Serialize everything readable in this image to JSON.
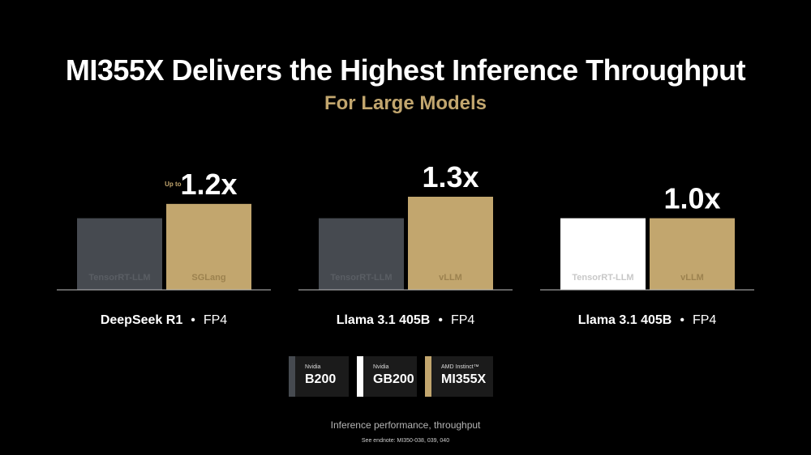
{
  "title": "MI355X Delivers the Highest Inference Throughput",
  "subtitle": "For Large Models",
  "colors": {
    "background": "#000000",
    "b200": "#464a50",
    "gb200": "#ffffff",
    "mi355x": "#c2a66e",
    "subtitle": "#c2a66e",
    "baseline": "#bfbfbf"
  },
  "legend": [
    {
      "vendor": "Nvidia",
      "model": "B200",
      "color": "#464a50"
    },
    {
      "vendor": "Nvidia",
      "model": "GB200",
      "color": "#ffffff"
    },
    {
      "vendor": "AMD Instinct™",
      "model": "MI355X",
      "color": "#c2a66e"
    }
  ],
  "chart_data": [
    {
      "type": "bar",
      "model_label": "DeepSeek R1",
      "precision": "FP4",
      "speedup_prefix": "Up to",
      "speedup_label": "1.2x",
      "categories": [
        "TensorRT-LLM",
        "SGLang"
      ],
      "values": [
        1.0,
        1.2
      ],
      "colors": [
        "#464a50",
        "#c2a66e"
      ],
      "label_colors": [
        "#5a5e64",
        "#9c824f"
      ],
      "ylim": [
        0,
        1.3
      ]
    },
    {
      "type": "bar",
      "model_label": "Llama 3.1 405B",
      "precision": "FP4",
      "speedup_prefix": "",
      "speedup_label": "1.3x",
      "categories": [
        "TensorRT-LLM",
        "vLLM"
      ],
      "values": [
        1.0,
        1.3
      ],
      "colors": [
        "#464a50",
        "#c2a66e"
      ],
      "label_colors": [
        "#5a5e64",
        "#9c824f"
      ],
      "ylim": [
        0,
        1.3
      ]
    },
    {
      "type": "bar",
      "model_label": "Llama 3.1 405B",
      "precision": "FP4",
      "speedup_prefix": "",
      "speedup_label": "1.0x",
      "categories": [
        "TensorRT-LLM",
        "vLLM"
      ],
      "values": [
        1.0,
        1.0
      ],
      "colors": [
        "#ffffff",
        "#c2a66e"
      ],
      "label_colors": [
        "#c8c8c8",
        "#9c824f"
      ],
      "ylim": [
        0,
        1.3
      ]
    }
  ],
  "footnote": "Inference performance, throughput",
  "endnote": "See endnote: MI350-038, 039, 040"
}
